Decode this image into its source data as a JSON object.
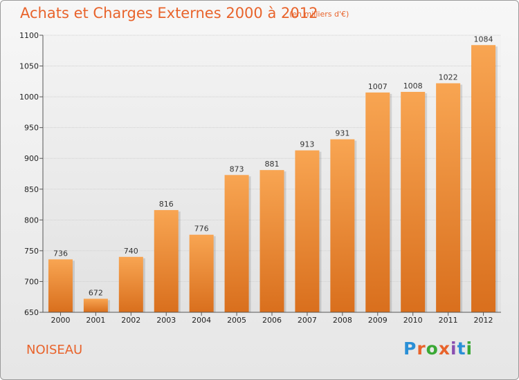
{
  "header": {
    "title": "Achats et Charges Externes 2000 à 2012",
    "subtitle": "(en milliers d'€)"
  },
  "footer": {
    "commune": "NOISEAU",
    "logo_text": "Proxiti",
    "logo_colors": [
      "#2a8fd6",
      "#e8632b",
      "#3aa835",
      "#e8632b",
      "#8a4fb0",
      "#2a8fd6",
      "#3aa835"
    ]
  },
  "colors": {
    "accent": "#e8632b",
    "bar_top": "#f8a552",
    "bar_bottom": "#d96f1d",
    "grid": "#cfcfcf"
  },
  "chart_data": {
    "type": "bar",
    "title": "Achats et Charges Externes 2000 à 2012",
    "subtitle": "(en milliers d'€)",
    "categories": [
      "2000",
      "2001",
      "2002",
      "2003",
      "2004",
      "2005",
      "2006",
      "2007",
      "2008",
      "2009",
      "2010",
      "2011",
      "2012"
    ],
    "values": [
      736,
      672,
      740,
      816,
      776,
      873,
      881,
      913,
      931,
      1007,
      1008,
      1022,
      1084
    ],
    "ylim": [
      650,
      1100
    ],
    "yticks": [
      650,
      700,
      750,
      800,
      850,
      900,
      950,
      1000,
      1050,
      1100
    ],
    "grid": true,
    "xlabel": "",
    "ylabel": ""
  }
}
